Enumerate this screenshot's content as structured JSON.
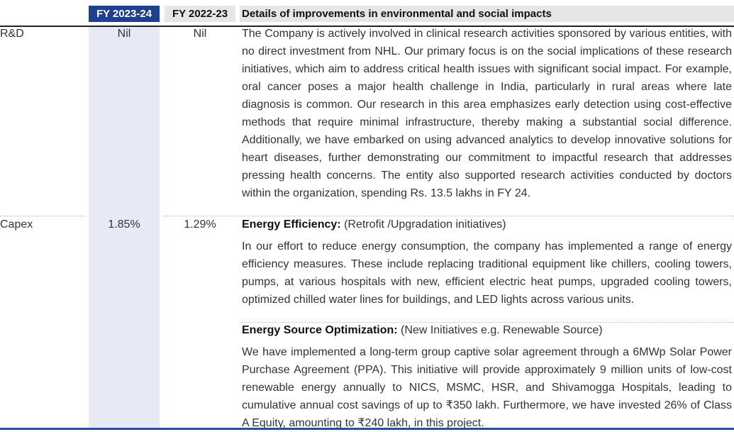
{
  "header": {
    "fy_current": "FY 2023-24",
    "fy_previous": "FY 2022-23",
    "details": "Details of improvements in environmental and social impacts"
  },
  "rows": [
    {
      "label": "R&D",
      "fy_current": "Nil",
      "fy_previous": "Nil",
      "description": "The Company is actively involved in clinical research activities sponsored by various entities, with no direct investment from NHL. Our primary focus is on the social implications of these research initiatives, which aim to address critical health issues with significant social impact. For example, oral cancer poses a major health challenge in India, particularly in rural areas where late diagnosis is common. Our research in this area emphasizes early detection using cost-effective methods that require minimal infrastructure, thereby making a substantial social difference. Additionally, we have embarked on using advanced analytics to develop innovative solutions for heart diseases, further demonstrating our commitment to impactful research that addresses pressing health concerns. The entity also supported research activities conducted by doctors within the organization, spending Rs. 13.5 lakhs in FY 24."
    },
    {
      "label": "Capex",
      "fy_current": "1.85%",
      "fy_previous": "1.29%",
      "sections": [
        {
          "heading": "Energy Efficiency:",
          "subheading": "(Retrofit /Upgradation initiatives)",
          "body": "In our effort to reduce energy consumption, the company has implemented a range of energy efficiency measures. These include replacing traditional equipment like chillers, cooling towers, pumps, at various hospitals with new, efficient electric heat pumps, upgraded cooling towers, optimized chilled water lines for buildings, and LED lights across various units."
        },
        {
          "heading": "Energy Source Optimization:",
          "subheading": "(New Initiatives e.g. Renewable Source)",
          "body": "We have implemented a long-term group captive solar agreement through a 6MWp Solar Power Purchase Agreement (PPA). This initiative will provide approximately 9 million units of low-cost renewable energy annually to NICS, MSMC, HSR, and Shivamogga Hospitals, leading to cumulative annual cost savings of up to ₹350 lakh. Furthermore, we have invested 26% of Class A Equity, amounting to ₹240 lakh, in this project."
        }
      ]
    }
  ],
  "colors": {
    "header_current_bg": "#1f3f8f",
    "header_grey_bg": "#e6e6e6",
    "column_band": "#e7e9f5"
  }
}
